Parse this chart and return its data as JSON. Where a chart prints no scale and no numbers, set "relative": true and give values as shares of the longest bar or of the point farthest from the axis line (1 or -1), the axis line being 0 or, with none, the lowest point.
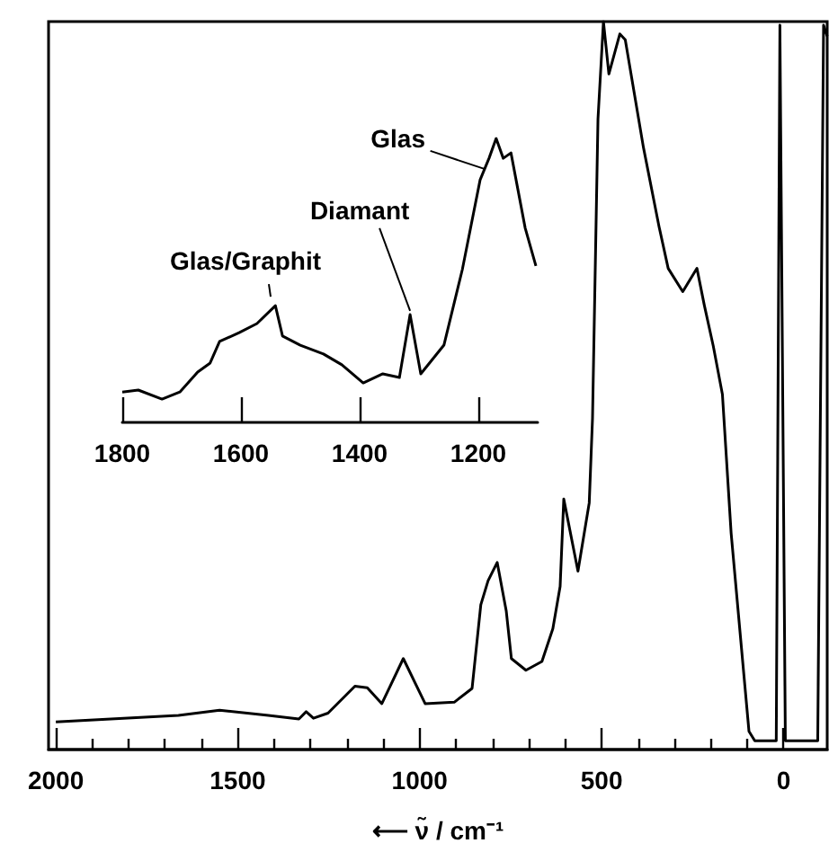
{
  "chart_data": [
    {
      "type": "line",
      "relative": true,
      "xlabel": "⟵ ν̃ / cm⁻¹",
      "xlim": [
        2020,
        -120
      ],
      "xticks": [
        2000,
        {
          "value": 1900,
          "label": null
        },
        {
          "value": 1800,
          "label": null
        },
        {
          "value": 1700,
          "label": null
        },
        {
          "value": 1600,
          "label": null
        },
        1500,
        {
          "value": 1400,
          "label": null
        },
        {
          "value": 1300,
          "label": null
        },
        {
          "value": 1200,
          "label": null
        },
        {
          "value": 1100,
          "label": null
        },
        1000,
        {
          "value": 900,
          "label": null
        },
        {
          "value": 800,
          "label": null
        },
        {
          "value": 700,
          "label": null
        },
        {
          "value": 600,
          "label": null
        },
        500,
        {
          "value": 400,
          "label": null
        },
        {
          "value": 300,
          "label": null
        },
        {
          "value": 200,
          "label": null
        },
        {
          "value": 100,
          "label": null
        },
        0
      ],
      "series": [
        {
          "color": "#000000",
          "x": [
            2000,
            1663,
            1550,
            1416,
            1332,
            1312,
            1292,
            1252,
            1178,
            1144,
            1104,
            1045,
            985,
            905,
            856,
            832,
            812,
            787,
            762,
            748,
            708,
            664,
            634,
            614,
            604,
            565,
            534,
            525,
            510,
            495,
            480,
            450,
            435,
            385,
            342,
            317,
            277,
            238,
            218,
            193,
            168,
            144,
            95,
            79,
            20,
            10,
            -5,
            -94,
            -110,
            -120
          ],
          "values": [
            0.038,
            0.047,
            0.054,
            0.047,
            0.042,
            0.052,
            0.043,
            0.05,
            0.087,
            0.085,
            0.063,
            0.125,
            0.063,
            0.065,
            0.084,
            0.199,
            0.232,
            0.257,
            0.19,
            0.125,
            0.109,
            0.121,
            0.166,
            0.224,
            0.344,
            0.245,
            0.339,
            0.455,
            0.866,
            1.0,
            0.928,
            0.983,
            0.975,
            0.827,
            0.718,
            0.661,
            0.629,
            0.661,
            0.611,
            0.554,
            0.488,
            0.297,
            0.025,
            0.012,
            0.012,
            0.995,
            0.012,
            0.012,
            0.995,
            0.98
          ]
        }
      ]
    },
    {
      "type": "line",
      "relative": true,
      "xlim": [
        1800,
        1100
      ],
      "xticks": [
        1800,
        1600,
        1400,
        1200
      ],
      "annotations": [
        {
          "text": "Glas/Graphit",
          "x": 1550,
          "y": 0.43
        },
        {
          "text": "Diamant",
          "x": 1315,
          "y": 0.38
        },
        {
          "text": "Glas",
          "x": 1190,
          "y": 0.88
        }
      ],
      "series": [
        {
          "color": "#000000",
          "x": [
            1800,
            1773,
            1733,
            1703,
            1673,
            1652,
            1636,
            1603,
            1573,
            1542,
            1530,
            1500,
            1461,
            1430,
            1394,
            1361,
            1333,
            1315,
            1297,
            1258,
            1227,
            1197,
            1182,
            1170,
            1158,
            1145,
            1121,
            1103
          ],
          "values": [
            0.107,
            0.114,
            0.082,
            0.107,
            0.177,
            0.209,
            0.285,
            0.316,
            0.348,
            0.411,
            0.304,
            0.272,
            0.241,
            0.203,
            0.139,
            0.171,
            0.158,
            0.38,
            0.171,
            0.272,
            0.538,
            0.854,
            0.93,
            1.0,
            0.93,
            0.949,
            0.684,
            0.551
          ]
        }
      ]
    }
  ]
}
